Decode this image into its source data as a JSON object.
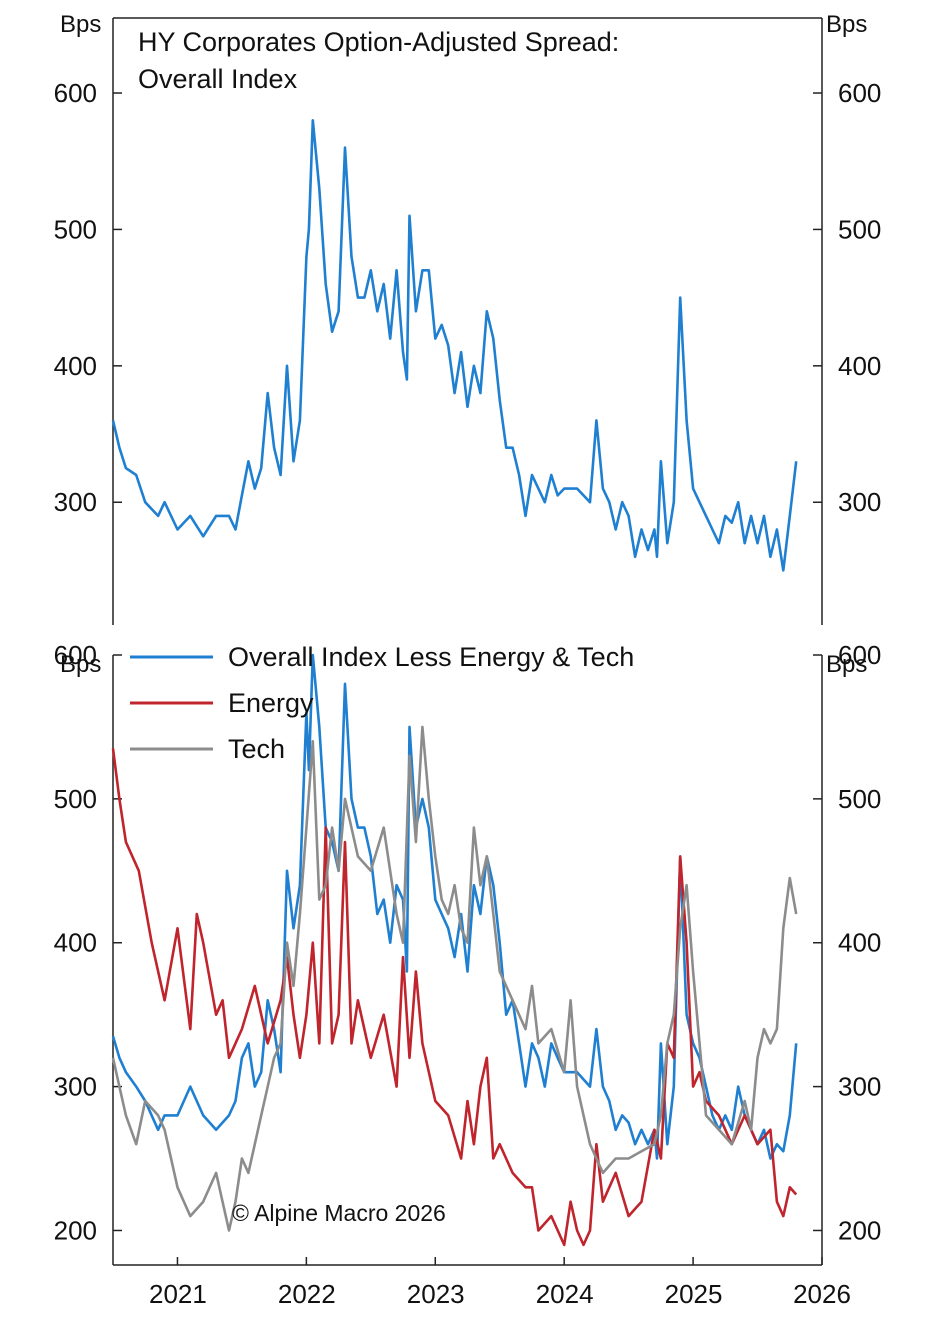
{
  "source_note": "© Alpine Macro 2026",
  "chart_data": [
    {
      "type": "line",
      "title": "HY Corporates Option-Adjusted Spread:",
      "subtitle": "Overall Index",
      "ylabel_left": "Bps",
      "ylabel_right": "Bps",
      "ylim": [
        210,
        655
      ],
      "yticks": [
        300,
        400,
        500,
        600
      ],
      "x_tick_labels": [
        "2021",
        "2022",
        "2023",
        "2024",
        "2025",
        "2026"
      ],
      "series": [
        {
          "color": "#1f7fd1",
          "x": [
            2020.5,
            2020.55,
            2020.6,
            2020.68,
            2020.75,
            2020.85,
            2020.9,
            2021.0,
            2021.1,
            2021.2,
            2021.3,
            2021.4,
            2021.45,
            2021.5,
            2021.55,
            2021.6,
            2021.65,
            2021.7,
            2021.75,
            2021.8,
            2021.85,
            2021.9,
            2021.95,
            2022.0,
            2022.02,
            2022.05,
            2022.1,
            2022.15,
            2022.2,
            2022.25,
            2022.3,
            2022.35,
            2022.4,
            2022.45,
            2022.5,
            2022.55,
            2022.6,
            2022.65,
            2022.7,
            2022.75,
            2022.78,
            2022.8,
            2022.85,
            2022.9,
            2022.95,
            2023.0,
            2023.05,
            2023.1,
            2023.15,
            2023.2,
            2023.25,
            2023.3,
            2023.35,
            2023.4,
            2023.45,
            2023.5,
            2023.55,
            2023.6,
            2023.65,
            2023.7,
            2023.75,
            2023.8,
            2023.85,
            2023.9,
            2023.95,
            2024.0,
            2024.1,
            2024.2,
            2024.25,
            2024.3,
            2024.35,
            2024.4,
            2024.45,
            2024.5,
            2024.55,
            2024.6,
            2024.65,
            2024.7,
            2024.72,
            2024.75,
            2024.8,
            2024.85,
            2024.9,
            2024.95,
            2025.0,
            2025.05,
            2025.1,
            2025.15,
            2025.2,
            2025.25,
            2025.3,
            2025.35,
            2025.4,
            2025.45,
            2025.5,
            2025.55,
            2025.6,
            2025.65,
            2025.7,
            2025.75,
            2025.8
          ],
          "y": [
            360,
            340,
            325,
            320,
            300,
            290,
            300,
            280,
            290,
            275,
            290,
            290,
            280,
            305,
            330,
            310,
            325,
            380,
            340,
            320,
            400,
            330,
            360,
            480,
            500,
            580,
            530,
            460,
            425,
            440,
            560,
            480,
            450,
            450,
            470,
            440,
            460,
            420,
            470,
            410,
            390,
            510,
            440,
            470,
            470,
            420,
            430,
            415,
            380,
            410,
            370,
            400,
            380,
            440,
            420,
            375,
            340,
            340,
            320,
            290,
            320,
            310,
            300,
            320,
            305,
            310,
            310,
            300,
            360,
            310,
            300,
            280,
            300,
            290,
            260,
            280,
            265,
            280,
            260,
            330,
            270,
            300,
            450,
            360,
            310,
            300,
            290,
            280,
            270,
            290,
            285,
            300,
            270,
            290,
            270,
            290,
            260,
            280,
            250,
            290,
            330
          ]
        }
      ]
    },
    {
      "type": "line",
      "ylabel_left": "Bps",
      "ylabel_right": "Bps",
      "ylim": [
        176,
        600
      ],
      "yticks": [
        200,
        300,
        400,
        500,
        600
      ],
      "x_tick_labels": [
        "2021",
        "2022",
        "2023",
        "2024",
        "2025",
        "2026"
      ],
      "series": [
        {
          "name": "Overall Index Less Energy & Tech",
          "color": "#1f7fd1",
          "x": [
            2020.5,
            2020.55,
            2020.6,
            2020.68,
            2020.75,
            2020.85,
            2020.9,
            2021.0,
            2021.1,
            2021.2,
            2021.3,
            2021.4,
            2021.45,
            2021.5,
            2021.55,
            2021.6,
            2021.65,
            2021.7,
            2021.75,
            2021.8,
            2021.85,
            2021.9,
            2021.95,
            2022.0,
            2022.02,
            2022.05,
            2022.1,
            2022.15,
            2022.2,
            2022.25,
            2022.3,
            2022.35,
            2022.4,
            2022.45,
            2022.5,
            2022.55,
            2022.6,
            2022.65,
            2022.7,
            2022.75,
            2022.78,
            2022.8,
            2022.85,
            2022.9,
            2022.95,
            2023.0,
            2023.05,
            2023.1,
            2023.15,
            2023.2,
            2023.25,
            2023.3,
            2023.35,
            2023.4,
            2023.45,
            2023.5,
            2023.55,
            2023.6,
            2023.65,
            2023.7,
            2023.75,
            2023.8,
            2023.85,
            2023.9,
            2023.95,
            2024.0,
            2024.1,
            2024.2,
            2024.25,
            2024.3,
            2024.35,
            2024.4,
            2024.45,
            2024.5,
            2024.55,
            2024.6,
            2024.65,
            2024.7,
            2024.72,
            2024.75,
            2024.8,
            2024.85,
            2024.9,
            2024.95,
            2025.0,
            2025.05,
            2025.1,
            2025.15,
            2025.2,
            2025.25,
            2025.3,
            2025.35,
            2025.4,
            2025.45,
            2025.5,
            2025.55,
            2025.6,
            2025.65,
            2025.7,
            2025.75,
            2025.8
          ],
          "y": [
            335,
            320,
            310,
            300,
            290,
            270,
            280,
            280,
            300,
            280,
            270,
            280,
            290,
            320,
            330,
            300,
            310,
            360,
            340,
            310,
            450,
            410,
            440,
            560,
            520,
            600,
            550,
            480,
            470,
            450,
            580,
            500,
            480,
            480,
            460,
            420,
            430,
            400,
            440,
            430,
            380,
            550,
            480,
            500,
            480,
            430,
            420,
            410,
            390,
            420,
            380,
            440,
            420,
            460,
            440,
            400,
            350,
            360,
            330,
            300,
            330,
            320,
            300,
            330,
            320,
            310,
            310,
            300,
            340,
            300,
            290,
            270,
            280,
            275,
            260,
            270,
            260,
            270,
            250,
            330,
            260,
            300,
            460,
            350,
            330,
            320,
            300,
            280,
            270,
            280,
            270,
            300,
            280,
            270,
            260,
            270,
            250,
            260,
            255,
            280,
            330
          ]
        },
        {
          "name": "Energy",
          "color": "#c0242c",
          "x": [
            2020.5,
            2020.55,
            2020.6,
            2020.7,
            2020.8,
            2020.9,
            2021.0,
            2021.1,
            2021.15,
            2021.2,
            2021.3,
            2021.35,
            2021.4,
            2021.5,
            2021.6,
            2021.7,
            2021.8,
            2021.85,
            2021.9,
            2021.95,
            2022.0,
            2022.05,
            2022.1,
            2022.15,
            2022.2,
            2022.25,
            2022.3,
            2022.35,
            2022.4,
            2022.5,
            2022.6,
            2022.7,
            2022.75,
            2022.8,
            2022.85,
            2022.9,
            2023.0,
            2023.1,
            2023.2,
            2023.25,
            2023.3,
            2023.35,
            2023.4,
            2023.45,
            2023.5,
            2023.6,
            2023.7,
            2023.75,
            2023.8,
            2023.9,
            2024.0,
            2024.05,
            2024.1,
            2024.15,
            2024.2,
            2024.25,
            2024.3,
            2024.4,
            2024.5,
            2024.6,
            2024.7,
            2024.75,
            2024.8,
            2024.85,
            2024.9,
            2024.95,
            2025.0,
            2025.05,
            2025.1,
            2025.2,
            2025.3,
            2025.4,
            2025.5,
            2025.6,
            2025.65,
            2025.7,
            2025.75,
            2025.8
          ],
          "y": [
            535,
            500,
            470,
            450,
            400,
            360,
            410,
            340,
            420,
            400,
            350,
            360,
            320,
            340,
            370,
            330,
            360,
            390,
            350,
            320,
            350,
            400,
            330,
            480,
            330,
            350,
            470,
            330,
            360,
            320,
            350,
            300,
            390,
            320,
            380,
            330,
            290,
            280,
            250,
            290,
            260,
            300,
            320,
            250,
            260,
            240,
            230,
            230,
            200,
            210,
            190,
            220,
            200,
            190,
            200,
            260,
            220,
            240,
            210,
            220,
            270,
            250,
            330,
            320,
            460,
            400,
            300,
            310,
            290,
            280,
            260,
            280,
            260,
            270,
            220,
            210,
            230,
            225
          ]
        },
        {
          "name": "Tech",
          "color": "#8c8c8c",
          "x": [
            2020.5,
            2020.55,
            2020.6,
            2020.68,
            2020.75,
            2020.85,
            2020.9,
            2021.0,
            2021.1,
            2021.2,
            2021.3,
            2021.4,
            2021.45,
            2021.5,
            2021.55,
            2021.6,
            2021.65,
            2021.7,
            2021.75,
            2021.8,
            2021.85,
            2021.9,
            2021.95,
            2022.0,
            2022.05,
            2022.1,
            2022.15,
            2022.2,
            2022.25,
            2022.3,
            2022.4,
            2022.5,
            2022.6,
            2022.7,
            2022.75,
            2022.8,
            2022.85,
            2022.9,
            2022.95,
            2023.0,
            2023.05,
            2023.1,
            2023.15,
            2023.2,
            2023.25,
            2023.3,
            2023.35,
            2023.4,
            2023.45,
            2023.5,
            2023.6,
            2023.7,
            2023.75,
            2023.8,
            2023.9,
            2024.0,
            2024.05,
            2024.1,
            2024.2,
            2024.3,
            2024.4,
            2024.5,
            2024.6,
            2024.7,
            2024.75,
            2024.8,
            2024.85,
            2024.9,
            2024.95,
            2025.0,
            2025.1,
            2025.2,
            2025.3,
            2025.4,
            2025.45,
            2025.5,
            2025.55,
            2025.6,
            2025.65,
            2025.7,
            2025.75,
            2025.8
          ],
          "y": [
            320,
            300,
            280,
            260,
            290,
            280,
            270,
            230,
            210,
            220,
            240,
            200,
            220,
            250,
            240,
            260,
            280,
            300,
            320,
            330,
            400,
            370,
            420,
            480,
            540,
            430,
            440,
            480,
            450,
            500,
            460,
            450,
            480,
            420,
            400,
            530,
            470,
            550,
            500,
            460,
            430,
            420,
            440,
            410,
            400,
            480,
            440,
            460,
            420,
            380,
            360,
            340,
            370,
            330,
            340,
            310,
            360,
            300,
            260,
            240,
            250,
            250,
            255,
            260,
            280,
            330,
            350,
            410,
            440,
            380,
            280,
            270,
            260,
            290,
            270,
            320,
            340,
            330,
            340,
            410,
            445,
            420
          ]
        }
      ]
    }
  ]
}
